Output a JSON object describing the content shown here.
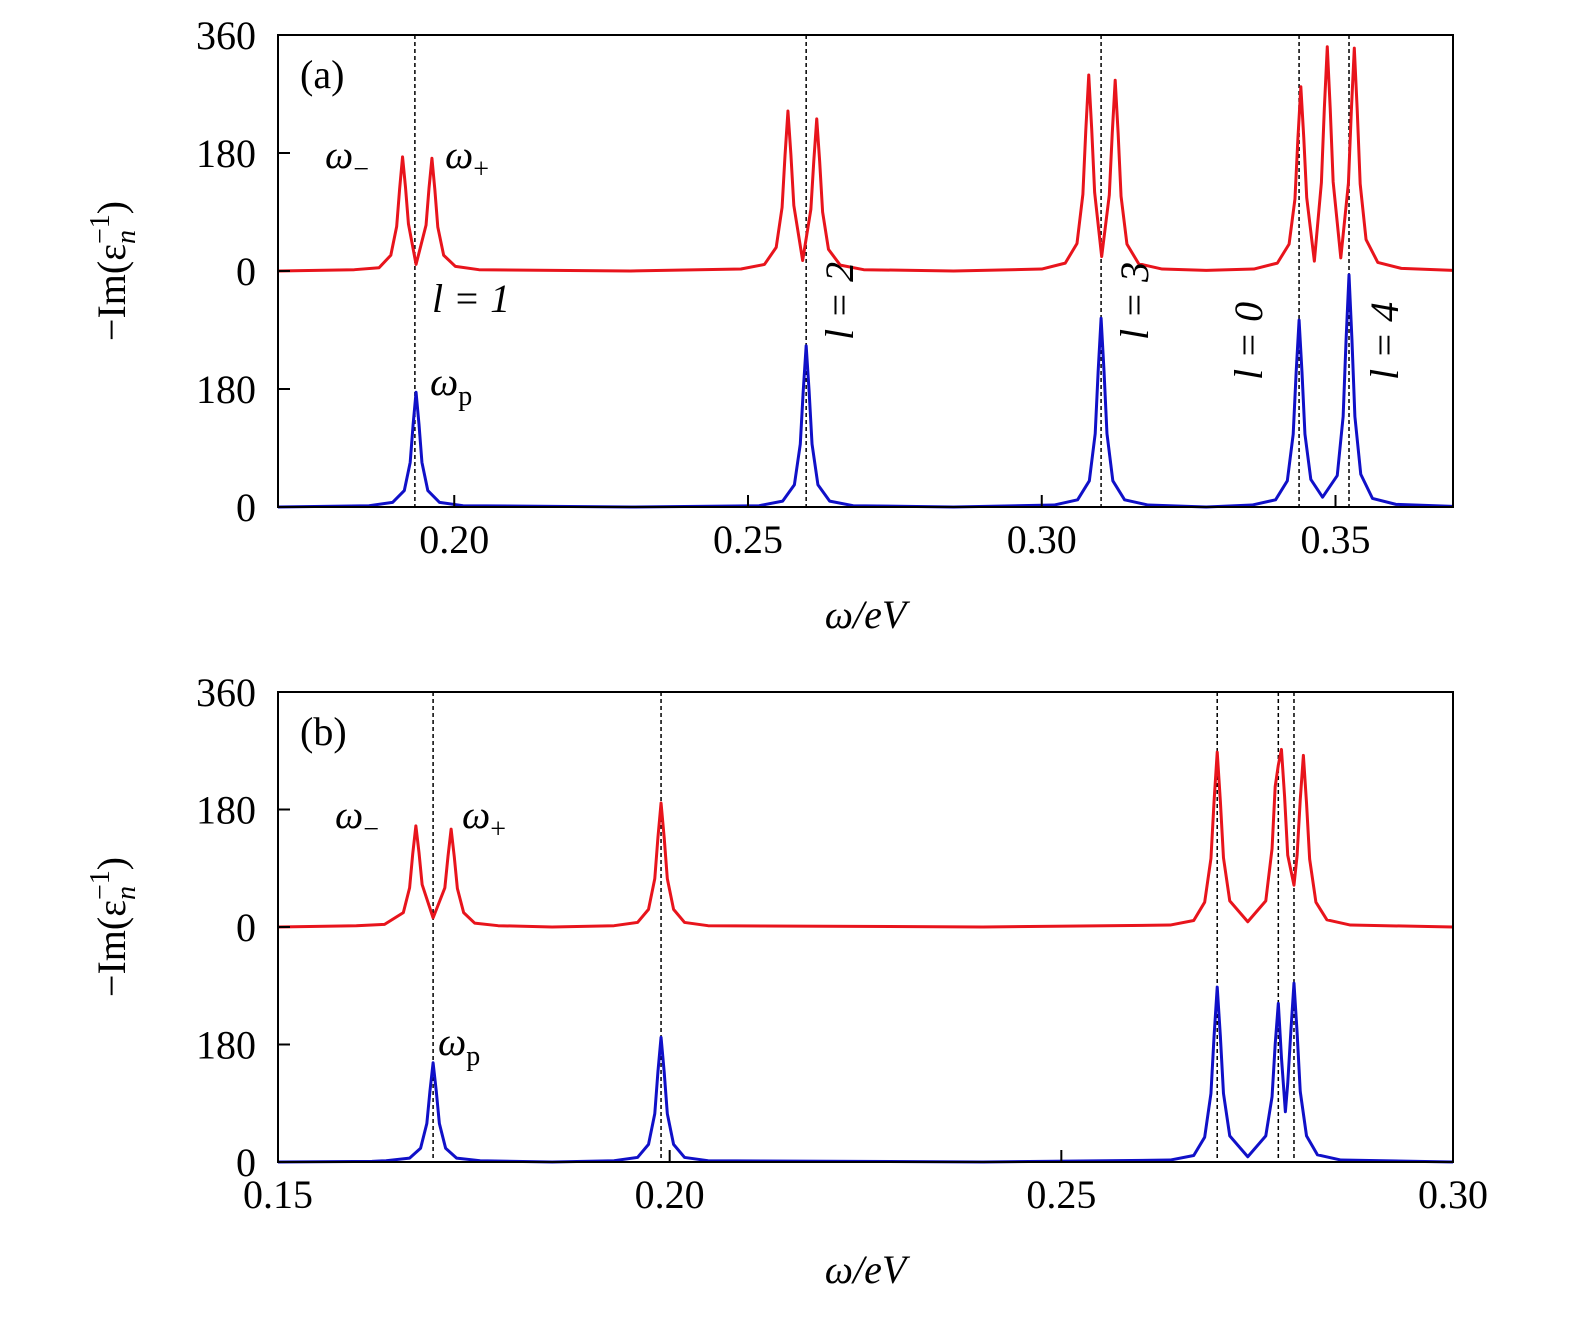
{
  "chart_data": [
    {
      "type": "line",
      "title": "(a)",
      "xlabel": "ω/eV",
      "ylabel": [
        "−Im(ε",
        "n",
        "−1",
        ")"
      ],
      "xlim": [
        0.17,
        0.37
      ],
      "xticks": [
        {
          "value": 0.2,
          "label": "0.20"
        },
        {
          "value": 0.25,
          "label": "0.25"
        },
        {
          "value": 0.3,
          "label": "0.30"
        },
        {
          "value": 0.35,
          "label": "0.35"
        }
      ],
      "ylim": [
        0,
        720
      ],
      "yticks": [
        0,
        180
      ],
      "y2lim": [
        -360,
        360
      ],
      "y2ticks": [
        0,
        180,
        360
      ],
      "vlines": [
        0.1933,
        0.2599,
        0.3101,
        0.3438,
        0.3523
      ],
      "annotations": [
        {
          "text": "ω",
          "sub": "−"
        },
        {
          "text": "ω",
          "sub": "+"
        },
        {
          "text": "ω",
          "sub": "p"
        },
        {
          "text": "l = 1"
        },
        {
          "text": "l = 2"
        },
        {
          "text": "l = 3"
        },
        {
          "text": "l = 0"
        },
        {
          "text": "l = 4"
        }
      ],
      "series": [
        {
          "color": "#e8141c",
          "axis": "y2",
          "x": [
            0.17,
            0.183,
            0.1872,
            0.1892,
            0.1902,
            0.1907,
            0.1912,
            0.1917,
            0.1922,
            0.1935,
            0.1952,
            0.1957,
            0.1962,
            0.1967,
            0.1972,
            0.1982,
            0.2002,
            0.2042,
            0.23,
            0.2488,
            0.2528,
            0.2548,
            0.2558,
            0.2563,
            0.2568,
            0.2573,
            0.2578,
            0.2593,
            0.2607,
            0.2612,
            0.2617,
            0.2622,
            0.2627,
            0.2637,
            0.2657,
            0.2697,
            0.285,
            0.3,
            0.304,
            0.306,
            0.307,
            0.3075,
            0.308,
            0.3085,
            0.309,
            0.3102,
            0.3115,
            0.312,
            0.3125,
            0.313,
            0.3135,
            0.3145,
            0.3165,
            0.3205,
            0.328,
            0.3361,
            0.3401,
            0.3421,
            0.3431,
            0.3436,
            0.3441,
            0.3446,
            0.3451,
            0.3464,
            0.3476,
            0.3481,
            0.3486,
            0.3491,
            0.3496,
            0.3509,
            0.3522,
            0.3527,
            0.3532,
            0.3537,
            0.3542,
            0.3552,
            0.3572,
            0.3612,
            0.37
          ],
          "values": [
            0,
            2,
            5,
            24,
            68,
            125,
            174,
            128,
            72,
            10,
            70,
            126,
            172,
            124,
            67,
            24,
            7,
            2,
            0,
            3,
            10,
            36,
            97,
            176,
            244,
            178,
            100,
            16,
            94,
            168,
            232,
            167,
            90,
            33,
            9,
            2,
            0,
            3,
            12,
            42,
            117,
            215,
            299,
            217,
            120,
            22,
            116,
            210,
            291,
            210,
            114,
            41,
            11,
            3,
            1,
            3,
            12,
            41,
            110,
            202,
            281,
            203,
            112,
            15,
            135,
            248,
            342,
            248,
            136,
            20,
            134,
            245,
            340,
            245,
            133,
            48,
            13,
            4,
            1
          ]
        },
        {
          "color": "#1010c8",
          "x": [
            0.17,
            0.1855,
            0.1895,
            0.1915,
            0.1925,
            0.193,
            0.1935,
            0.194,
            0.1945,
            0.1955,
            0.1975,
            0.2015,
            0.23,
            0.2519,
            0.2559,
            0.2579,
            0.2589,
            0.2594,
            0.2599,
            0.2604,
            0.2609,
            0.2619,
            0.2639,
            0.2679,
            0.285,
            0.3021,
            0.3061,
            0.3081,
            0.3091,
            0.3096,
            0.3101,
            0.3106,
            0.3111,
            0.3121,
            0.3141,
            0.3181,
            0.328,
            0.3358,
            0.3398,
            0.3418,
            0.3428,
            0.3433,
            0.3438,
            0.3443,
            0.3448,
            0.3458,
            0.3478,
            0.3503,
            0.3513,
            0.3518,
            0.3523,
            0.3528,
            0.3533,
            0.3543,
            0.3563,
            0.3603,
            0.37
          ],
          "values": [
            0,
            2,
            7,
            25,
            68,
            126,
            175,
            126,
            68,
            25,
            7,
            2,
            0,
            2,
            9,
            34,
            96,
            177,
            246,
            177,
            96,
            34,
            9,
            2,
            0,
            3,
            11,
            40,
            112,
            207,
            288,
            207,
            112,
            40,
            11,
            3,
            0,
            3,
            11,
            40,
            111,
            205,
            285,
            205,
            111,
            42,
            15,
            48,
            138,
            255,
            354,
            255,
            138,
            50,
            13,
            4,
            1
          ]
        }
      ]
    },
    {
      "type": "line",
      "title": "(b)",
      "xlabel": "ω/eV",
      "ylabel": [
        "−Im(ε",
        "n",
        "−1",
        ")"
      ],
      "xlim": [
        0.15,
        0.3
      ],
      "xticks": [
        {
          "value": 0.15,
          "label": "0.15"
        },
        {
          "value": 0.2,
          "label": "0.20"
        },
        {
          "value": 0.25,
          "label": "0.25"
        },
        {
          "value": 0.3,
          "label": "0.30"
        }
      ],
      "ylim": [
        0,
        720
      ],
      "yticks": [
        0,
        180
      ],
      "y2lim": [
        -360,
        360
      ],
      "y2ticks": [
        0,
        180,
        360
      ],
      "vlines": [
        0.1698,
        0.1989,
        0.2699,
        0.2777,
        0.2797
      ],
      "annotations": [
        {
          "text": "ω",
          "sub": "−"
        },
        {
          "text": "ω",
          "sub": "+"
        },
        {
          "text": "ω",
          "sub": "p"
        }
      ],
      "series": [
        {
          "color": "#e8141c",
          "axis": "y2",
          "x": [
            0.15,
            0.16,
            0.1636,
            0.166,
            0.1668,
            0.1672,
            0.1676,
            0.168,
            0.1684,
            0.1698,
            0.1713,
            0.1717,
            0.1721,
            0.1725,
            0.1729,
            0.1737,
            0.1751,
            0.1781,
            0.185,
            0.1929,
            0.1959,
            0.1973,
            0.1981,
            0.1985,
            0.1989,
            0.1993,
            0.1997,
            0.2005,
            0.2019,
            0.2049,
            0.24,
            0.2639,
            0.2669,
            0.2683,
            0.2691,
            0.2695,
            0.2699,
            0.2703,
            0.2707,
            0.2715,
            0.2738,
            0.2761,
            0.2769,
            0.2773,
            0.2777,
            0.2781,
            0.2785,
            0.2789,
            0.2797,
            0.2801,
            0.2805,
            0.2809,
            0.2813,
            0.2817,
            0.2825,
            0.2839,
            0.2869,
            0.3
          ],
          "values": [
            0,
            2,
            4,
            22,
            60,
            112,
            155,
            114,
            65,
            14,
            60,
            108,
            150,
            108,
            59,
            22,
            6,
            2,
            0,
            2,
            7,
            27,
            74,
            137,
            190,
            137,
            74,
            27,
            7,
            2,
            0,
            3,
            10,
            38,
            105,
            193,
            268,
            193,
            106,
            40,
            8,
            40,
            120,
            215,
            248,
            272,
            200,
            110,
            64,
            110,
            195,
            263,
            190,
            104,
            38,
            11,
            3,
            0
          ]
        },
        {
          "color": "#1010c8",
          "x": [
            0.15,
            0.162,
            0.1638,
            0.1668,
            0.1682,
            0.169,
            0.1694,
            0.1698,
            0.1702,
            0.1706,
            0.1714,
            0.1728,
            0.1758,
            0.185,
            0.1929,
            0.1959,
            0.1973,
            0.1981,
            0.1985,
            0.1989,
            0.1993,
            0.1997,
            0.2005,
            0.2019,
            0.2049,
            0.24,
            0.2639,
            0.2669,
            0.2683,
            0.2691,
            0.2695,
            0.2699,
            0.2703,
            0.2707,
            0.2715,
            0.2738,
            0.2761,
            0.2769,
            0.2773,
            0.2777,
            0.2781,
            0.2786,
            0.2789,
            0.2793,
            0.2797,
            0.2801,
            0.2805,
            0.2813,
            0.2827,
            0.2857,
            0.3
          ],
          "values": [
            0,
            1,
            2,
            6,
            21,
            59,
            109,
            152,
            109,
            59,
            21,
            6,
            2,
            0,
            2,
            7,
            27,
            74,
            138,
            191,
            138,
            74,
            27,
            7,
            2,
            0,
            3,
            10,
            38,
            105,
            193,
            268,
            193,
            105,
            40,
            8,
            40,
            100,
            180,
            243,
            160,
            77,
            120,
            200,
            274,
            198,
            108,
            40,
            11,
            3,
            0
          ]
        }
      ]
    }
  ]
}
